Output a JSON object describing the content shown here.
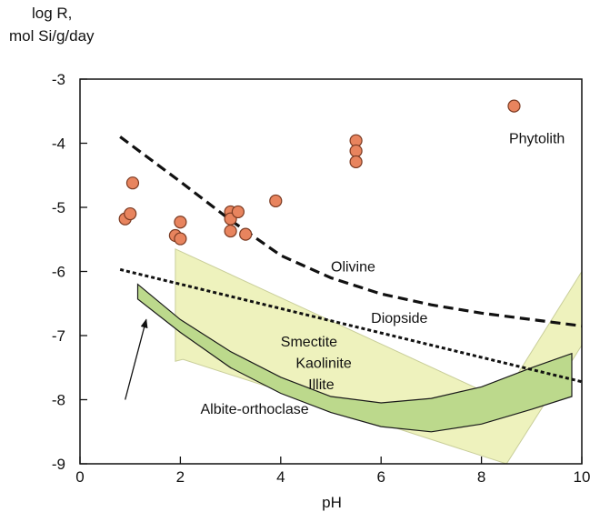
{
  "chart_data": {
    "type": "scatter",
    "xlabel": "pH",
    "ylabel_line1": "log R,",
    "ylabel_line2": "mol Si/g/day",
    "xlim": [
      0,
      10
    ],
    "ylim": [
      -9,
      -3
    ],
    "xticks": [
      0,
      2,
      4,
      6,
      8,
      10
    ],
    "yticks": [
      -3,
      -4,
      -5,
      -6,
      -7,
      -8,
      -9
    ],
    "grid": false,
    "colors": {
      "points": "#e8845e",
      "points_stroke": "#7a3a22",
      "smectite_fill": "#eef2bd",
      "albite_fill": "#bcd98c",
      "albite_stroke": "#1a1a1a"
    },
    "phytolith_points": [
      {
        "x": 0.9,
        "y": -5.18
      },
      {
        "x": 1.0,
        "y": -5.1
      },
      {
        "x": 1.05,
        "y": -4.62
      },
      {
        "x": 1.9,
        "y": -5.44
      },
      {
        "x": 2.0,
        "y": -5.23
      },
      {
        "x": 2.0,
        "y": -5.49
      },
      {
        "x": 3.0,
        "y": -5.07
      },
      {
        "x": 3.0,
        "y": -5.18
      },
      {
        "x": 3.0,
        "y": -5.37
      },
      {
        "x": 3.15,
        "y": -5.07
      },
      {
        "x": 3.3,
        "y": -5.42
      },
      {
        "x": 3.9,
        "y": -4.9
      },
      {
        "x": 5.5,
        "y": -3.96
      },
      {
        "x": 5.5,
        "y": -4.12
      },
      {
        "x": 5.5,
        "y": -4.29
      },
      {
        "x": 8.65,
        "y": -3.42
      }
    ],
    "olivine_curve": [
      {
        "x": 0.8,
        "y": -3.9
      },
      {
        "x": 2.0,
        "y": -4.6
      },
      {
        "x": 3.0,
        "y": -5.2
      },
      {
        "x": 4.0,
        "y": -5.75
      },
      {
        "x": 5.0,
        "y": -6.1
      },
      {
        "x": 6.0,
        "y": -6.35
      },
      {
        "x": 7.0,
        "y": -6.52
      },
      {
        "x": 8.0,
        "y": -6.65
      },
      {
        "x": 9.0,
        "y": -6.75
      },
      {
        "x": 10.0,
        "y": -6.85
      }
    ],
    "diopside_line": [
      {
        "x": 0.8,
        "y": -5.97
      },
      {
        "x": 10.0,
        "y": -7.72
      }
    ],
    "smectite_band": [
      {
        "x": 1.9,
        "y": -5.65
      },
      {
        "x": 8.4,
        "y": -8.0
      },
      {
        "x": 10.0,
        "y": -6.0
      },
      {
        "x": 10.0,
        "y": -7.15
      },
      {
        "x": 8.5,
        "y": -9.0
      },
      {
        "x": 2.05,
        "y": -7.37
      },
      {
        "x": 1.9,
        "y": -7.4
      }
    ],
    "albite_band": [
      {
        "x": 1.15,
        "y": -6.2
      },
      {
        "x": 2.0,
        "y": -6.75
      },
      {
        "x": 3.0,
        "y": -7.25
      },
      {
        "x": 4.0,
        "y": -7.65
      },
      {
        "x": 5.0,
        "y": -7.95
      },
      {
        "x": 6.0,
        "y": -8.05
      },
      {
        "x": 7.0,
        "y": -7.98
      },
      {
        "x": 8.0,
        "y": -7.8
      },
      {
        "x": 9.0,
        "y": -7.5
      },
      {
        "x": 9.8,
        "y": -7.28
      },
      {
        "x": 9.8,
        "y": -7.95
      },
      {
        "x": 9.0,
        "y": -8.15
      },
      {
        "x": 8.0,
        "y": -8.38
      },
      {
        "x": 7.0,
        "y": -8.5
      },
      {
        "x": 6.0,
        "y": -8.42
      },
      {
        "x": 5.0,
        "y": -8.2
      },
      {
        "x": 4.0,
        "y": -7.9
      },
      {
        "x": 3.0,
        "y": -7.5
      },
      {
        "x": 2.0,
        "y": -6.95
      },
      {
        "x": 1.15,
        "y": -6.43
      }
    ],
    "annotations": {
      "phytolith": "Phytolith",
      "olivine": "Olivine",
      "diopside": "Diopside",
      "smectite": "Smectite",
      "kaolinite": "Kaolinite",
      "illite": "Illite",
      "albite": "Albite-orthoclase"
    },
    "annotation_anchors": {
      "phytolith": {
        "x": 8.55,
        "y": -4.0
      },
      "olivine": {
        "x": 5.0,
        "y": -6.0
      },
      "diopside": {
        "x": 5.8,
        "y": -6.8
      },
      "smectite": {
        "x": 4.0,
        "y": -7.17
      },
      "kaolinite": {
        "x": 4.3,
        "y": -7.5
      },
      "illite": {
        "x": 4.55,
        "y": -7.84
      },
      "albite": {
        "x": 2.4,
        "y": -8.22
      },
      "albite_arrow_tail": {
        "x": 0.9,
        "y": -8.0
      },
      "albite_arrow_head": {
        "x": 1.32,
        "y": -6.75
      }
    }
  }
}
